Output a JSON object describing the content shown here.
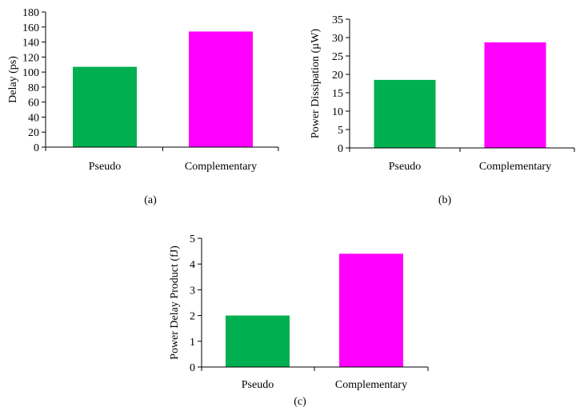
{
  "colors": {
    "series_a": "#00b050",
    "series_b": "#ff00ff",
    "axis": "#000000"
  },
  "chart_data": [
    {
      "type": "bar",
      "caption": "(a)",
      "categories": [
        "Pseudo",
        "Complementary"
      ],
      "values": [
        107,
        154
      ],
      "ylabel": "Delay (ps)",
      "xlabel": "",
      "ylim": [
        0,
        180
      ],
      "yticks": [
        0,
        20,
        40,
        60,
        80,
        100,
        120,
        140,
        160,
        180
      ],
      "grid": false
    },
    {
      "type": "bar",
      "caption": "(b)",
      "categories": [
        "Pseudo",
        "Complementary"
      ],
      "values": [
        18.5,
        28.7
      ],
      "ylabel": "Power Dissipation (µW)",
      "xlabel": "",
      "ylim": [
        0,
        35
      ],
      "yticks": [
        0,
        5,
        10,
        15,
        20,
        25,
        30,
        35
      ],
      "grid": false
    },
    {
      "type": "bar",
      "caption": "(c)",
      "categories": [
        "Pseudo",
        "Complementary"
      ],
      "values": [
        2.0,
        4.4
      ],
      "ylabel": "Power Delay Product (fJ)",
      "xlabel": "",
      "ylim": [
        0,
        5
      ],
      "yticks": [
        0,
        1,
        2,
        3,
        4,
        5
      ],
      "grid": false
    }
  ]
}
